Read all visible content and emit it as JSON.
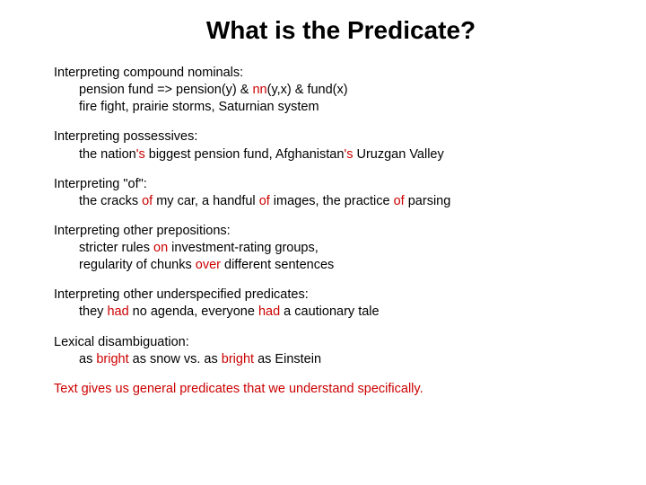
{
  "title": "What is the Predicate?",
  "colors": {
    "highlight": "#cc0000",
    "text": "#000000",
    "background": "#ffffff"
  },
  "fonts": {
    "title_size": 28,
    "body_size": 14.5,
    "family": "Arial"
  },
  "sections": [
    {
      "heading": "Interpreting compound nominals:",
      "lines": [
        {
          "parts": [
            {
              "t": "pension fund => pension(y) & "
            },
            {
              "t": "nn",
              "red": true
            },
            {
              "t": "(y,x) & fund(x)"
            }
          ]
        },
        {
          "parts": [
            {
              "t": "fire fight, prairie storms, Saturnian system"
            }
          ]
        }
      ]
    },
    {
      "heading": "Interpreting possessives:",
      "lines": [
        {
          "parts": [
            {
              "t": "the nation"
            },
            {
              "t": "'s",
              "red": true
            },
            {
              "t": " biggest pension fund, Afghanistan"
            },
            {
              "t": "'s",
              "red": true
            },
            {
              "t": " Uruzgan Valley"
            }
          ]
        }
      ]
    },
    {
      "heading": "Interpreting \"of\":",
      "lines": [
        {
          "parts": [
            {
              "t": "the cracks "
            },
            {
              "t": "of",
              "red": true
            },
            {
              "t": " my car, a handful "
            },
            {
              "t": "of",
              "red": true
            },
            {
              "t": " images, the practice "
            },
            {
              "t": "of",
              "red": true
            },
            {
              "t": " parsing"
            }
          ]
        }
      ]
    },
    {
      "heading": "Interpreting other prepositions:",
      "lines": [
        {
          "parts": [
            {
              "t": "stricter rules "
            },
            {
              "t": "on",
              "red": true
            },
            {
              "t": " investment-rating groups,"
            }
          ]
        },
        {
          "parts": [
            {
              "t": "regularity of chunks "
            },
            {
              "t": "over",
              "red": true
            },
            {
              "t": " different sentences"
            }
          ]
        }
      ]
    },
    {
      "heading": "Interpreting other underspecified predicates:",
      "lines": [
        {
          "parts": [
            {
              "t": "they "
            },
            {
              "t": "had",
              "red": true
            },
            {
              "t": " no agenda, everyone "
            },
            {
              "t": "had",
              "red": true
            },
            {
              "t": " a cautionary tale"
            }
          ]
        }
      ]
    },
    {
      "heading": "Lexical disambiguation:",
      "lines": [
        {
          "parts": [
            {
              "t": "as "
            },
            {
              "t": "bright",
              "red": true
            },
            {
              "t": " as snow vs. as "
            },
            {
              "t": "bright",
              "red": true
            },
            {
              "t": " as Einstein"
            }
          ]
        }
      ]
    },
    {
      "conclusion": true,
      "lines": [
        {
          "parts": [
            {
              "t": "Text gives us general predicates that we understand specifically.",
              "red": true
            }
          ]
        }
      ]
    }
  ]
}
